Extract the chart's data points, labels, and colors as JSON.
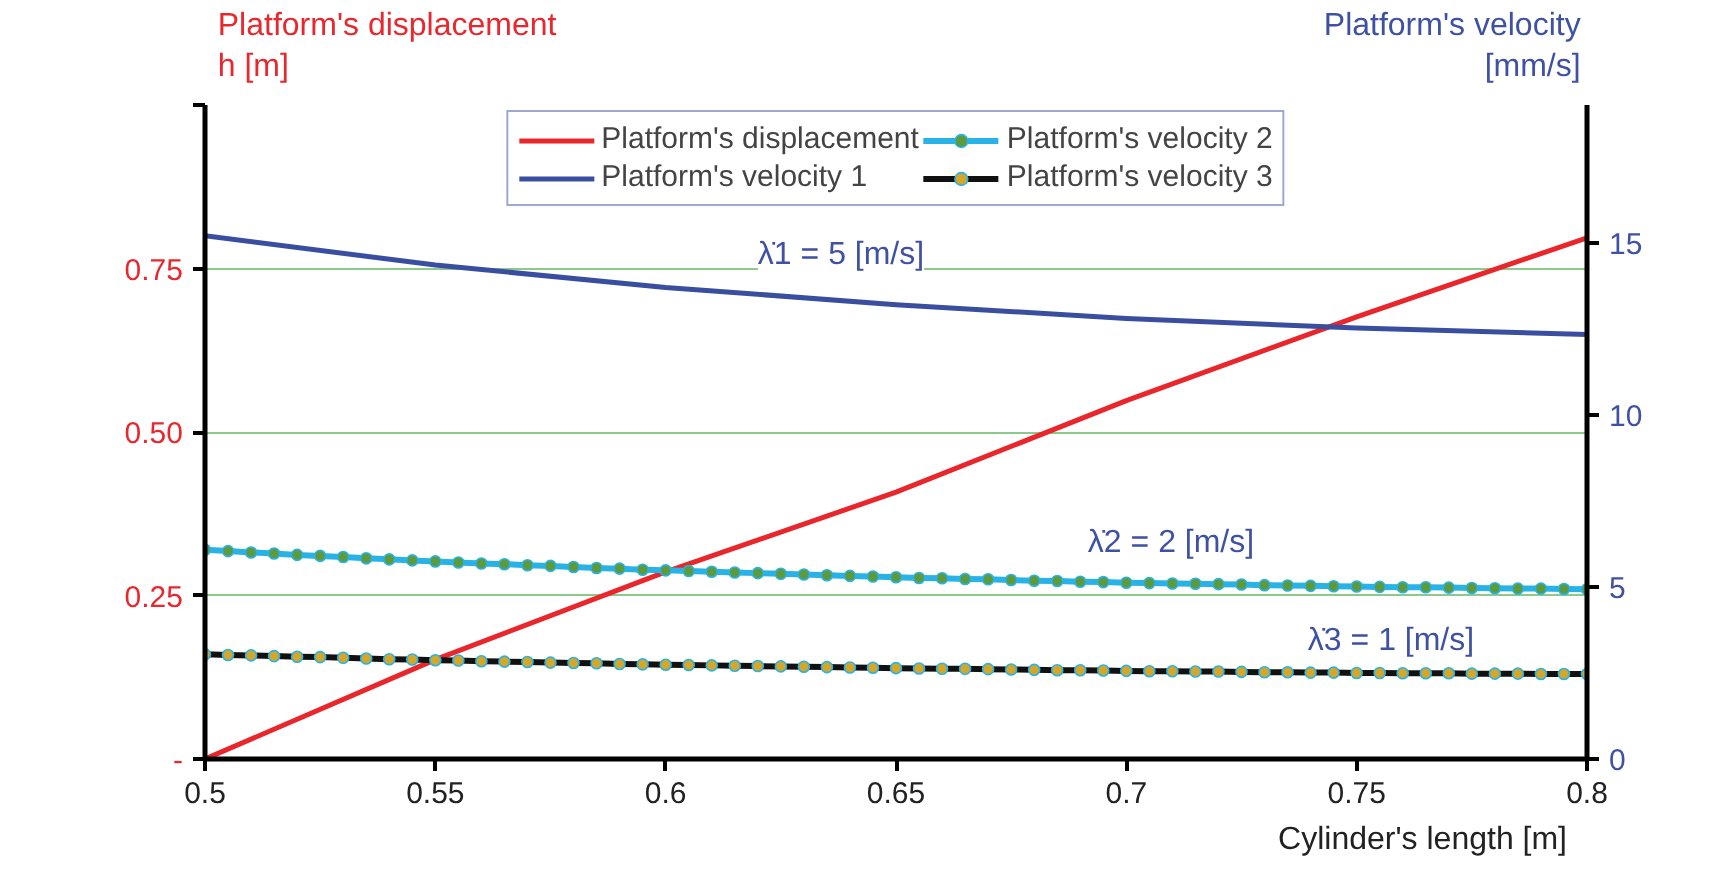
{
  "chart_data": {
    "type": "line",
    "xlabel": "Cylinder's length [m]",
    "ylabel": "Platform's displacement\nh [m]",
    "y2label": "Platform's velocity\n[mm/s]",
    "x": [
      0.5,
      0.505,
      0.51,
      0.515,
      0.52,
      0.525,
      0.53,
      0.535,
      0.54,
      0.545,
      0.55,
      0.555,
      0.56,
      0.565,
      0.57,
      0.575,
      0.58,
      0.585,
      0.59,
      0.595,
      0.6,
      0.605,
      0.61,
      0.615,
      0.62,
      0.625,
      0.63,
      0.635,
      0.64,
      0.645,
      0.65,
      0.655,
      0.66,
      0.665,
      0.67,
      0.675,
      0.68,
      0.685,
      0.69,
      0.695,
      0.7,
      0.705,
      0.71,
      0.715,
      0.72,
      0.725,
      0.73,
      0.735,
      0.74,
      0.745,
      0.75,
      0.755,
      0.76,
      0.765,
      0.77,
      0.775,
      0.78,
      0.785,
      0.79,
      0.795,
      0.8
    ],
    "xlim": [
      0.5,
      0.8
    ],
    "xticks": [
      0.5,
      0.55,
      0.6,
      0.65,
      0.7,
      0.75,
      0.8
    ],
    "ylim": [
      0,
      1
    ],
    "yticks": [
      {
        "value": 0,
        "label": "-"
      },
      0.25,
      {
        "value": 0.5,
        "label": "0.50"
      },
      0.75,
      {
        "value": 1,
        "label": null
      }
    ],
    "y2lim": [
      0,
      19
    ],
    "y2ticks": [
      0,
      5,
      10,
      15
    ],
    "grid": "y",
    "legend": "top",
    "series": [
      {
        "name": "Platform's displacement",
        "color": "#e8262b",
        "marker": "none",
        "x": [
          0.5,
          0.55,
          0.6,
          0.65,
          0.7,
          0.75,
          0.8
        ],
        "values": [
          0,
          0.152,
          0.286,
          0.408,
          0.548,
          0.676,
          0.797
        ]
      },
      {
        "name": "Platform's velocity 1",
        "color": "#3a4ea0",
        "marker": "none",
        "axis": "y2",
        "x": [
          0.5,
          0.55,
          0.6,
          0.65,
          0.7,
          0.75,
          0.8
        ],
        "values": [
          15.2,
          14.35,
          13.7,
          13.2,
          12.8,
          12.52,
          12.33
        ]
      },
      {
        "name": "Platform's velocity 2",
        "color": "#29b2e6",
        "marker": "circle",
        "axis": "y2",
        "values": [
          6.08,
          6.04,
          6.0,
          5.97,
          5.93,
          5.9,
          5.87,
          5.83,
          5.8,
          5.77,
          5.74,
          5.71,
          5.68,
          5.66,
          5.63,
          5.61,
          5.58,
          5.55,
          5.53,
          5.5,
          5.48,
          5.46,
          5.44,
          5.42,
          5.4,
          5.38,
          5.36,
          5.34,
          5.32,
          5.3,
          5.28,
          5.26,
          5.25,
          5.23,
          5.22,
          5.2,
          5.18,
          5.17,
          5.15,
          5.14,
          5.12,
          5.11,
          5.1,
          5.09,
          5.08,
          5.07,
          5.05,
          5.04,
          5.03,
          5.02,
          5.01,
          5.0,
          4.99,
          4.99,
          4.98,
          4.97,
          4.96,
          4.95,
          4.95,
          4.94,
          4.93
        ]
      },
      {
        "name": "Platform's velocity 3",
        "color": "#111111",
        "marker": "circle",
        "axis": "y2",
        "values": [
          3.04,
          3.02,
          3.01,
          2.99,
          2.97,
          2.96,
          2.94,
          2.92,
          2.9,
          2.89,
          2.87,
          2.86,
          2.84,
          2.83,
          2.82,
          2.8,
          2.79,
          2.78,
          2.76,
          2.75,
          2.74,
          2.73,
          2.72,
          2.71,
          2.7,
          2.69,
          2.68,
          2.67,
          2.66,
          2.65,
          2.64,
          2.63,
          2.62,
          2.62,
          2.61,
          2.6,
          2.59,
          2.58,
          2.58,
          2.57,
          2.56,
          2.55,
          2.55,
          2.54,
          2.54,
          2.53,
          2.52,
          2.52,
          2.51,
          2.51,
          2.5,
          2.5,
          2.49,
          2.49,
          2.49,
          2.48,
          2.48,
          2.48,
          2.47,
          2.47,
          2.47
        ]
      }
    ],
    "annotations": [
      "λ̇1 = 5 [m/s]",
      "λ̇2 = 2 [m/s]",
      "λ̇3 = 1 [m/s]"
    ]
  }
}
